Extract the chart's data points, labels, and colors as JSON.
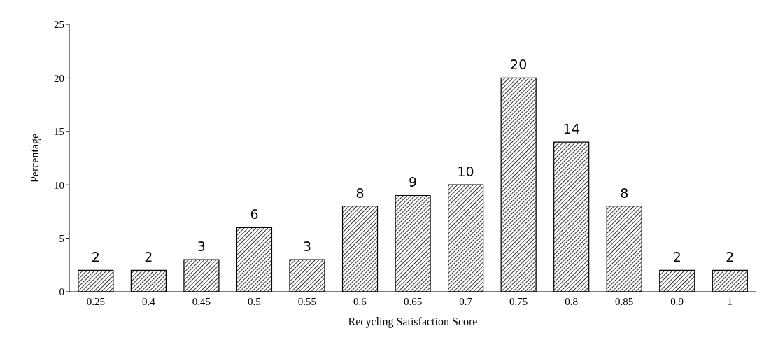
{
  "chart_data": {
    "type": "bar",
    "xlabel": "Recycling Satisfaction Score",
    "ylabel": "Percentage",
    "categories": [
      "0.25",
      "0.4",
      "0.45",
      "0.5",
      "0.55",
      "0.6",
      "0.65",
      "0.7",
      "0.75",
      "0.8",
      "0.85",
      "0.9",
      "1"
    ],
    "values": [
      2,
      2,
      3,
      6,
      3,
      8,
      9,
      10,
      20,
      14,
      8,
      2,
      2
    ],
    "color": "#000000",
    "ylim": [
      0,
      25
    ],
    "yticks": [
      0,
      5,
      10,
      15,
      20,
      25
    ],
    "grid": false,
    "data_labels": true
  }
}
